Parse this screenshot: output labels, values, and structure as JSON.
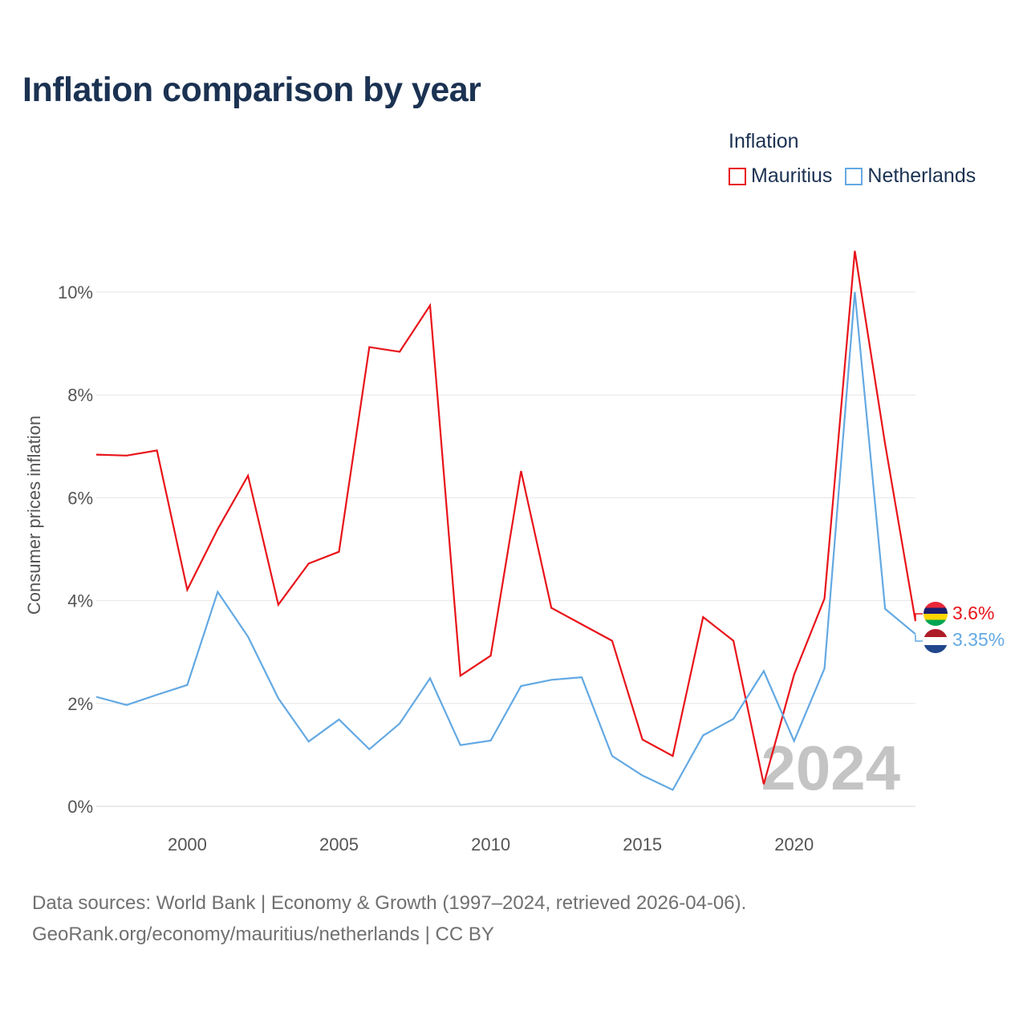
{
  "title": "Inflation comparison by year",
  "legend": {
    "title": "Inflation",
    "items": [
      {
        "label": "Mauritius",
        "color": "#e8131a"
      },
      {
        "label": "Netherlands",
        "color": "#63a9e3"
      }
    ]
  },
  "chart_data": {
    "type": "line",
    "title": "Inflation comparison by year",
    "xlabel": "",
    "ylabel": "Consumer prices inflation",
    "x": [
      1997,
      1998,
      1999,
      2000,
      2001,
      2002,
      2003,
      2004,
      2005,
      2006,
      2007,
      2008,
      2009,
      2010,
      2011,
      2012,
      2013,
      2014,
      2015,
      2016,
      2017,
      2018,
      2019,
      2020,
      2021,
      2022,
      2023,
      2024
    ],
    "xlim": [
      1997,
      2024
    ],
    "ylim": [
      0,
      10
    ],
    "x_ticks": [
      2000,
      2005,
      2010,
      2015,
      2020
    ],
    "x_tick_labels": [
      "2000",
      "2005",
      "2010",
      "2015",
      "2020"
    ],
    "y_ticks": [
      0,
      2,
      4,
      6,
      8,
      10
    ],
    "y_tick_labels": [
      "0%",
      "2%",
      "4%",
      "6%",
      "8%",
      "10%"
    ],
    "grid": true,
    "legend_position": "top-right",
    "series": [
      {
        "name": "Mauritius",
        "color": "#e8131a",
        "values": [
          6.84,
          6.82,
          6.92,
          4.21,
          5.39,
          6.43,
          3.92,
          4.72,
          4.95,
          8.93,
          8.84,
          9.74,
          2.54,
          2.93,
          6.52,
          3.86,
          3.54,
          3.22,
          1.3,
          0.98,
          3.68,
          3.22,
          0.43,
          2.56,
          4.04,
          10.8,
          7.04,
          3.6
        ],
        "end_label": "3.6%"
      },
      {
        "name": "Netherlands",
        "color": "#63a9e3",
        "values": [
          2.13,
          1.97,
          2.17,
          2.36,
          4.17,
          3.3,
          2.1,
          1.26,
          1.69,
          1.11,
          1.61,
          2.49,
          1.19,
          1.28,
          2.34,
          2.46,
          2.51,
          0.98,
          0.6,
          0.32,
          1.38,
          1.7,
          2.63,
          1.27,
          2.68,
          10.0,
          3.84,
          3.35
        ],
        "end_label": "3.35%"
      }
    ],
    "annotations": [
      "2024"
    ]
  },
  "footer": {
    "line1": "Data sources: World Bank | Economy & Growth (1997–2024, retrieved 2026-04-06).",
    "line2": "GeoRank.org/economy/mauritius/netherlands | CC BY"
  }
}
